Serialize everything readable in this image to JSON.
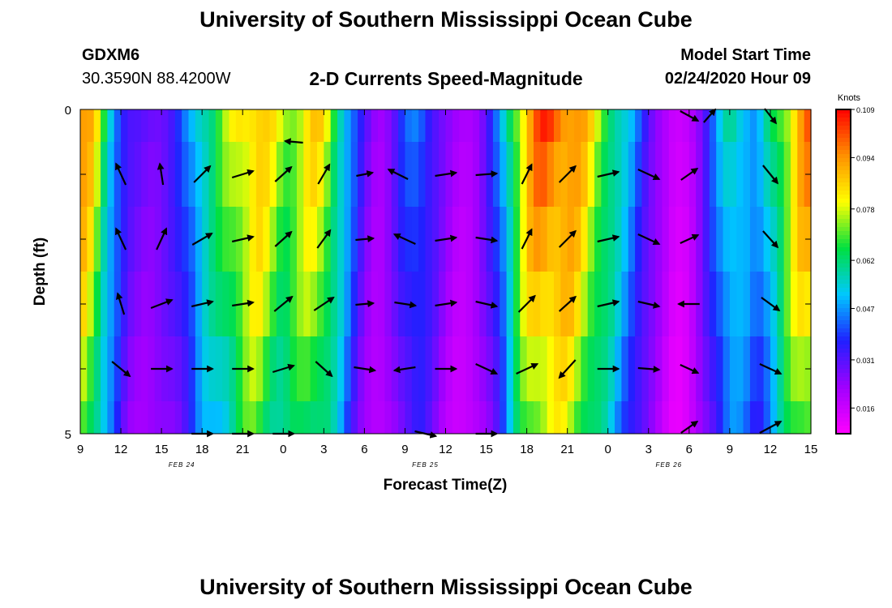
{
  "header": {
    "title": "University of Southern Mississippi Ocean Cube",
    "station_id": "GDXM6",
    "station_coords": "30.3590N 88.4200W",
    "chart_title": "2-D Currents Speed-Magnitude",
    "model_start_label": "Model Start Time",
    "model_start_value": "02/24/2020 Hour 09"
  },
  "footer": {
    "title": "University of Southern Mississippi Ocean Cube"
  },
  "chart_data": {
    "type": "heatmap",
    "title": "2-D Currents Speed-Magnitude",
    "xlabel": "Forecast Time(Z)",
    "ylabel": "Depth (ft)",
    "x_tick_labels": [
      "9",
      "12",
      "15",
      "18",
      "21",
      "0",
      "3",
      "6",
      "9",
      "12",
      "15",
      "18",
      "21",
      "0",
      "3",
      "6",
      "9",
      "12",
      "15"
    ],
    "date_labels": [
      {
        "text": "FEB 24",
        "at_tick": 2.5
      },
      {
        "text": "FEB 25",
        "at_tick": 8.5
      },
      {
        "text": "FEB 26",
        "at_tick": 14.5
      }
    ],
    "x_range_hours": [
      0,
      54
    ],
    "y_tick_labels": [
      {
        "value": 0,
        "text": "0"
      },
      {
        "value": 5,
        "text": "5"
      }
    ],
    "ylim": [
      0,
      5
    ],
    "depth_bin_edges": [
      0,
      0.5,
      1.5,
      2.5,
      3.5,
      4.5,
      5
    ],
    "colorbar": {
      "unit": "Knots",
      "min": 0.008,
      "max": 0.109,
      "tick_labels": [
        "0.109",
        "0.094",
        "0.078",
        "0.062",
        "0.047",
        "0.031",
        "0.016"
      ],
      "tick_values": [
        0.109,
        0.094,
        0.078,
        0.062,
        0.047,
        0.031,
        0.016
      ],
      "colors": [
        "#ff00ff",
        "#a000ff",
        "#2020ff",
        "#00c8ff",
        "#00e040",
        "#ffff00",
        "#ff9000",
        "#ff0000"
      ]
    },
    "speed_profile": [
      {
        "t": 0,
        "v": 0.095
      },
      {
        "t": 0.5,
        "v": 0.09
      },
      {
        "t": 1,
        "v": 0.085
      },
      {
        "t": 1.5,
        "v": 0.072
      },
      {
        "t": 2,
        "v": 0.06
      },
      {
        "t": 2.5,
        "v": 0.05
      },
      {
        "t": 3,
        "v": 0.04
      },
      {
        "t": 3.5,
        "v": 0.032
      },
      {
        "t": 4,
        "v": 0.03
      },
      {
        "t": 5,
        "v": 0.028
      },
      {
        "t": 6,
        "v": 0.03
      },
      {
        "t": 7,
        "v": 0.034
      },
      {
        "t": 8,
        "v": 0.045
      },
      {
        "t": 9,
        "v": 0.06
      },
      {
        "t": 10,
        "v": 0.065
      },
      {
        "t": 11,
        "v": 0.075
      },
      {
        "t": 12,
        "v": 0.085
      },
      {
        "t": 13,
        "v": 0.09
      },
      {
        "t": 14,
        "v": 0.082
      },
      {
        "t": 15,
        "v": 0.074
      },
      {
        "t": 16,
        "v": 0.078
      },
      {
        "t": 17,
        "v": 0.085
      },
      {
        "t": 18,
        "v": 0.082
      },
      {
        "t": 19,
        "v": 0.065
      },
      {
        "t": 20,
        "v": 0.045
      },
      {
        "t": 21,
        "v": 0.03
      },
      {
        "t": 22,
        "v": 0.022
      },
      {
        "t": 23,
        "v": 0.028
      },
      {
        "t": 24,
        "v": 0.04
      },
      {
        "t": 25,
        "v": 0.045
      },
      {
        "t": 26,
        "v": 0.035
      },
      {
        "t": 27,
        "v": 0.025
      },
      {
        "t": 28,
        "v": 0.02
      },
      {
        "t": 29,
        "v": 0.022
      },
      {
        "t": 30,
        "v": 0.03
      },
      {
        "t": 31,
        "v": 0.045
      },
      {
        "t": 32,
        "v": 0.07
      },
      {
        "t": 33,
        "v": 0.09
      },
      {
        "t": 34,
        "v": 0.1
      },
      {
        "t": 35,
        "v": 0.102
      },
      {
        "t": 36,
        "v": 0.098
      },
      {
        "t": 37,
        "v": 0.09
      },
      {
        "t": 38,
        "v": 0.08
      },
      {
        "t": 39,
        "v": 0.068
      },
      {
        "t": 40,
        "v": 0.055
      },
      {
        "t": 41,
        "v": 0.045
      },
      {
        "t": 42,
        "v": 0.032
      },
      {
        "t": 43,
        "v": 0.022
      },
      {
        "t": 44,
        "v": 0.014
      },
      {
        "t": 45,
        "v": 0.018
      },
      {
        "t": 46,
        "v": 0.03
      },
      {
        "t": 47,
        "v": 0.045
      },
      {
        "t": 48,
        "v": 0.06
      },
      {
        "t": 49,
        "v": 0.055
      },
      {
        "t": 50,
        "v": 0.045
      },
      {
        "t": 51,
        "v": 0.06
      },
      {
        "t": 52,
        "v": 0.075
      },
      {
        "t": 53,
        "v": 0.09
      },
      {
        "t": 54,
        "v": 0.097
      }
    ],
    "depth_speed_factors": [
      1.0,
      0.96,
      0.92,
      0.88,
      0.82,
      0.78
    ],
    "vectors": [
      {
        "t": 15.8,
        "d": 0.5,
        "dx": -22,
        "dy": -2
      },
      {
        "t": 45.0,
        "d": 0.1,
        "dx": 22,
        "dy": 12
      },
      {
        "t": 46.5,
        "d": 0.1,
        "dx": 14,
        "dy": -16
      },
      {
        "t": 51.0,
        "d": 0.1,
        "dx": 14,
        "dy": 18
      },
      {
        "t": 3.0,
        "d": 1.0,
        "dx": -12,
        "dy": -26
      },
      {
        "t": 6.0,
        "d": 1.0,
        "dx": -4,
        "dy": -26
      },
      {
        "t": 9.0,
        "d": 1.0,
        "dx": 20,
        "dy": -20
      },
      {
        "t": 12.0,
        "d": 1.0,
        "dx": 26,
        "dy": -8
      },
      {
        "t": 15.0,
        "d": 1.0,
        "dx": 20,
        "dy": -18
      },
      {
        "t": 18.0,
        "d": 1.0,
        "dx": 14,
        "dy": -24
      },
      {
        "t": 21.0,
        "d": 1.0,
        "dx": 20,
        "dy": -4
      },
      {
        "t": 23.5,
        "d": 1.0,
        "dx": -24,
        "dy": -12
      },
      {
        "t": 27.0,
        "d": 1.0,
        "dx": 26,
        "dy": -4
      },
      {
        "t": 30.0,
        "d": 1.0,
        "dx": 26,
        "dy": -2
      },
      {
        "t": 33.0,
        "d": 1.0,
        "dx": 12,
        "dy": -24
      },
      {
        "t": 36.0,
        "d": 1.0,
        "dx": 20,
        "dy": -20
      },
      {
        "t": 39.0,
        "d": 1.0,
        "dx": 26,
        "dy": -6
      },
      {
        "t": 42.0,
        "d": 1.0,
        "dx": 26,
        "dy": 12
      },
      {
        "t": 45.0,
        "d": 1.0,
        "dx": 20,
        "dy": -14
      },
      {
        "t": 51.0,
        "d": 1.0,
        "dx": 18,
        "dy": 22
      },
      {
        "t": 3.0,
        "d": 2.0,
        "dx": -12,
        "dy": -26
      },
      {
        "t": 6.0,
        "d": 2.0,
        "dx": 12,
        "dy": -26
      },
      {
        "t": 9.0,
        "d": 2.0,
        "dx": 24,
        "dy": -14
      },
      {
        "t": 12.0,
        "d": 2.0,
        "dx": 26,
        "dy": -6
      },
      {
        "t": 15.0,
        "d": 2.0,
        "dx": 20,
        "dy": -18
      },
      {
        "t": 18.0,
        "d": 2.0,
        "dx": 16,
        "dy": -22
      },
      {
        "t": 21.0,
        "d": 2.0,
        "dx": 22,
        "dy": -2
      },
      {
        "t": 24.0,
        "d": 2.0,
        "dx": -26,
        "dy": -12
      },
      {
        "t": 27.0,
        "d": 2.0,
        "dx": 26,
        "dy": -4
      },
      {
        "t": 30.0,
        "d": 2.0,
        "dx": 26,
        "dy": 4
      },
      {
        "t": 33.0,
        "d": 2.0,
        "dx": 12,
        "dy": -24
      },
      {
        "t": 36.0,
        "d": 2.0,
        "dx": 20,
        "dy": -20
      },
      {
        "t": 39.0,
        "d": 2.0,
        "dx": 26,
        "dy": -6
      },
      {
        "t": 42.0,
        "d": 2.0,
        "dx": 26,
        "dy": 12
      },
      {
        "t": 45.0,
        "d": 2.0,
        "dx": 22,
        "dy": -10
      },
      {
        "t": 51.0,
        "d": 2.0,
        "dx": 18,
        "dy": 20
      },
      {
        "t": 3.0,
        "d": 3.0,
        "dx": -8,
        "dy": -26
      },
      {
        "t": 6.0,
        "d": 3.0,
        "dx": 26,
        "dy": -10
      },
      {
        "t": 9.0,
        "d": 3.0,
        "dx": 26,
        "dy": -6
      },
      {
        "t": 12.0,
        "d": 3.0,
        "dx": 26,
        "dy": -4
      },
      {
        "t": 15.0,
        "d": 3.0,
        "dx": 22,
        "dy": -18
      },
      {
        "t": 18.0,
        "d": 3.0,
        "dx": 24,
        "dy": -16
      },
      {
        "t": 21.0,
        "d": 3.0,
        "dx": 22,
        "dy": -2
      },
      {
        "t": 24.0,
        "d": 3.0,
        "dx": 26,
        "dy": 4
      },
      {
        "t": 27.0,
        "d": 3.0,
        "dx": 26,
        "dy": -4
      },
      {
        "t": 30.0,
        "d": 3.0,
        "dx": 26,
        "dy": 6
      },
      {
        "t": 33.0,
        "d": 3.0,
        "dx": 20,
        "dy": -20
      },
      {
        "t": 36.0,
        "d": 3.0,
        "dx": 20,
        "dy": -18
      },
      {
        "t": 39.0,
        "d": 3.0,
        "dx": 26,
        "dy": -6
      },
      {
        "t": 42.0,
        "d": 3.0,
        "dx": 26,
        "dy": 6
      },
      {
        "t": 45.0,
        "d": 3.0,
        "dx": -26,
        "dy": 0
      },
      {
        "t": 51.0,
        "d": 3.0,
        "dx": 22,
        "dy": 16
      },
      {
        "t": 3.0,
        "d": 4.0,
        "dx": 22,
        "dy": 18
      },
      {
        "t": 6.0,
        "d": 4.0,
        "dx": 26,
        "dy": 0
      },
      {
        "t": 9.0,
        "d": 4.0,
        "dx": 26,
        "dy": 0
      },
      {
        "t": 12.0,
        "d": 4.0,
        "dx": 26,
        "dy": 0
      },
      {
        "t": 15.0,
        "d": 4.0,
        "dx": 26,
        "dy": -8
      },
      {
        "t": 18.0,
        "d": 4.0,
        "dx": 20,
        "dy": 18
      },
      {
        "t": 21.0,
        "d": 4.0,
        "dx": 26,
        "dy": 4
      },
      {
        "t": 24.0,
        "d": 4.0,
        "dx": -26,
        "dy": 4
      },
      {
        "t": 27.0,
        "d": 4.0,
        "dx": 26,
        "dy": 0
      },
      {
        "t": 30.0,
        "d": 4.0,
        "dx": 26,
        "dy": 12
      },
      {
        "t": 33.0,
        "d": 4.0,
        "dx": 26,
        "dy": -12
      },
      {
        "t": 36.0,
        "d": 4.0,
        "dx": -20,
        "dy": 22
      },
      {
        "t": 39.0,
        "d": 4.0,
        "dx": 26,
        "dy": 0
      },
      {
        "t": 42.0,
        "d": 4.0,
        "dx": 26,
        "dy": 2
      },
      {
        "t": 45.0,
        "d": 4.0,
        "dx": 22,
        "dy": 10
      },
      {
        "t": 51.0,
        "d": 4.0,
        "dx": 26,
        "dy": 12
      },
      {
        "t": 9.0,
        "d": 5.0,
        "dx": 26,
        "dy": 0
      },
      {
        "t": 12.0,
        "d": 5.0,
        "dx": 26,
        "dy": 0
      },
      {
        "t": 15.0,
        "d": 5.0,
        "dx": 26,
        "dy": 0
      },
      {
        "t": 25.5,
        "d": 5.0,
        "dx": 26,
        "dy": 6
      },
      {
        "t": 30.0,
        "d": 5.0,
        "dx": 26,
        "dy": 0
      },
      {
        "t": 45.0,
        "d": 4.9,
        "dx": 20,
        "dy": -14
      },
      {
        "t": 51.0,
        "d": 4.9,
        "dx": 26,
        "dy": -14
      }
    ]
  }
}
